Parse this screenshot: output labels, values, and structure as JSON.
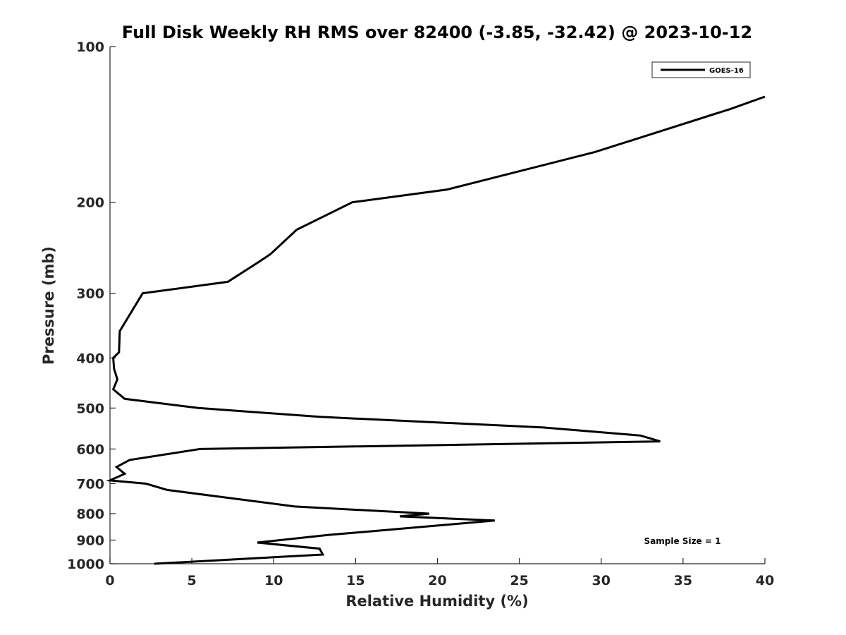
{
  "chart_data": {
    "type": "line",
    "title": "Full Disk Weekly RH RMS over 82400 (-3.85, -32.42) @ 2023-10-12",
    "xlabel": "Relative Humidity (%)",
    "ylabel": "Pressure (mb)",
    "xlim": [
      0,
      40
    ],
    "ylim": [
      1000,
      100
    ],
    "yscale": "log",
    "y_reversed": true,
    "grid": false,
    "legend_position": "top-right",
    "x_ticks": [
      "0",
      "5",
      "10",
      "15",
      "20",
      "25",
      "30",
      "35",
      "40"
    ],
    "y_ticks": [
      "100",
      "200",
      "300",
      "400",
      "500",
      "600",
      "700",
      "800",
      "900",
      "1000"
    ],
    "annotations": [
      "Sample Size = 1"
    ],
    "series": [
      {
        "name": "GOES-16",
        "color": "#000000",
        "x": [
          40.0,
          37.9,
          29.6,
          20.6,
          14.8,
          11.4,
          9.8,
          9.0,
          7.2,
          2.0,
          1.2,
          0.6,
          0.55,
          0.2,
          0.25,
          0.45,
          0.2,
          0.9,
          5.4,
          12.8,
          26.4,
          32.4,
          33.6,
          5.5,
          1.2,
          0.4,
          0.9,
          0.0,
          2.2,
          3.5,
          6.4,
          11.3,
          19.5,
          17.7,
          23.5,
          13.3,
          9.0,
          12.8,
          13.0,
          2.7
        ],
        "y": [
          125,
          132,
          160,
          189,
          200,
          226,
          252,
          262,
          285,
          300,
          330,
          355,
          390,
          400,
          420,
          440,
          460,
          480,
          500,
          520,
          545,
          565,
          580,
          600,
          630,
          650,
          670,
          690,
          700,
          720,
          740,
          775,
          800,
          810,
          825,
          880,
          910,
          935,
          960,
          1000
        ]
      }
    ]
  }
}
